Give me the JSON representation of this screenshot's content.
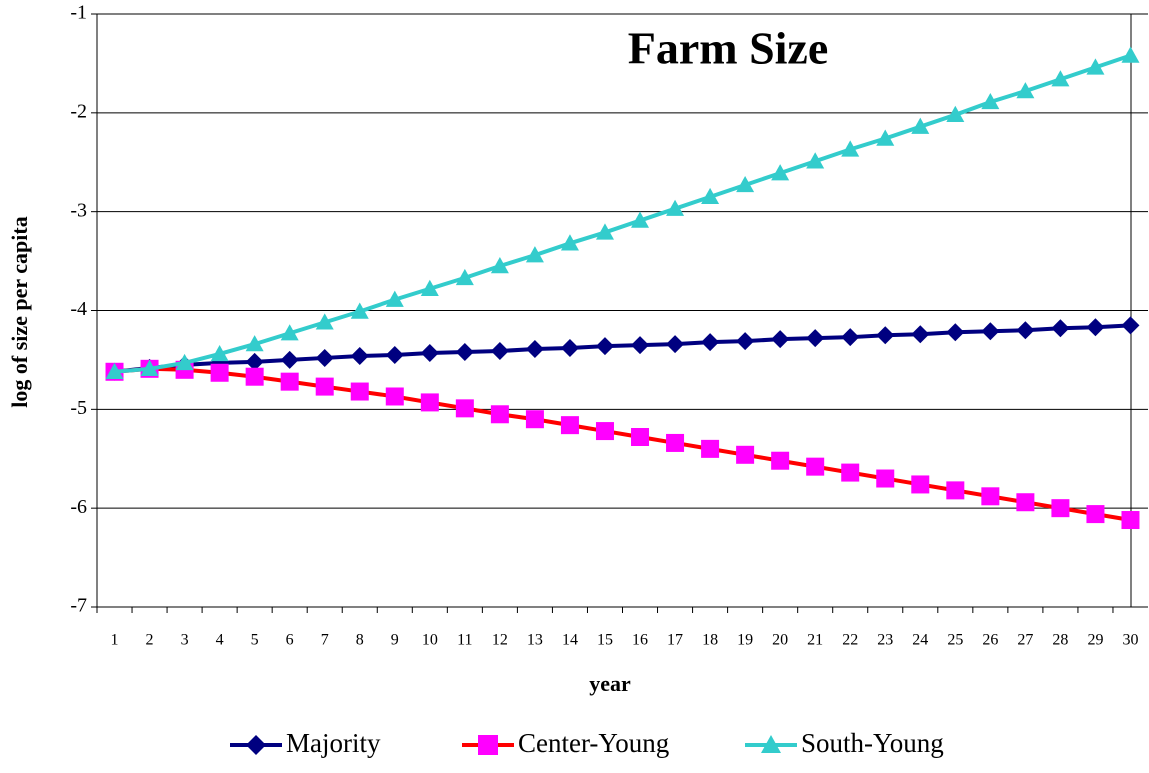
{
  "chart_data": {
    "type": "line",
    "title": "Farm Size",
    "x_label": "year",
    "y_label": "log of size per capita",
    "categories": [
      1,
      2,
      3,
      4,
      5,
      6,
      7,
      8,
      9,
      10,
      11,
      12,
      13,
      14,
      15,
      16,
      17,
      18,
      19,
      20,
      21,
      22,
      23,
      24,
      25,
      26,
      27,
      28,
      29,
      30
    ],
    "ylim": [
      -7,
      -1
    ],
    "yticks": [
      -7,
      -6,
      -5,
      -4,
      -3,
      -2,
      -1
    ],
    "grid": true,
    "legend": "bottom",
    "series": [
      {
        "name": "Majority",
        "color": "#000080",
        "marker_color": "#000080",
        "marker": "diamond",
        "values": [
          -4.62,
          -4.58,
          -4.55,
          -4.53,
          -4.52,
          -4.5,
          -4.48,
          -4.46,
          -4.45,
          -4.43,
          -4.42,
          -4.41,
          -4.39,
          -4.38,
          -4.36,
          -4.35,
          -4.34,
          -4.32,
          -4.31,
          -4.29,
          -4.28,
          -4.27,
          -4.25,
          -4.24,
          -4.22,
          -4.21,
          -4.2,
          -4.18,
          -4.17,
          -4.15
        ]
      },
      {
        "name": "Center-Young",
        "color": "#ff0000",
        "marker_color": "#ff00ff",
        "marker": "square",
        "values": [
          -4.62,
          -4.59,
          -4.6,
          -4.63,
          -4.67,
          -4.72,
          -4.77,
          -4.82,
          -4.87,
          -4.93,
          -4.99,
          -5.05,
          -5.1,
          -5.16,
          -5.22,
          -5.28,
          -5.34,
          -5.4,
          -5.46,
          -5.52,
          -5.58,
          -5.64,
          -5.7,
          -5.76,
          -5.82,
          -5.88,
          -5.94,
          -6.0,
          -6.06,
          -6.12
        ]
      },
      {
        "name": "South-Young",
        "color": "#33cccc",
        "marker_color": "#33cccc",
        "marker": "triangle",
        "values": [
          -4.62,
          -4.59,
          -4.53,
          -4.44,
          -4.34,
          -4.23,
          -4.12,
          -4.01,
          -3.89,
          -3.78,
          -3.67,
          -3.55,
          -3.44,
          -3.32,
          -3.21,
          -3.09,
          -2.97,
          -2.85,
          -2.73,
          -2.61,
          -2.49,
          -2.37,
          -2.26,
          -2.14,
          -2.02,
          -1.89,
          -1.78,
          -1.66,
          -1.54,
          -1.42
        ]
      }
    ]
  }
}
